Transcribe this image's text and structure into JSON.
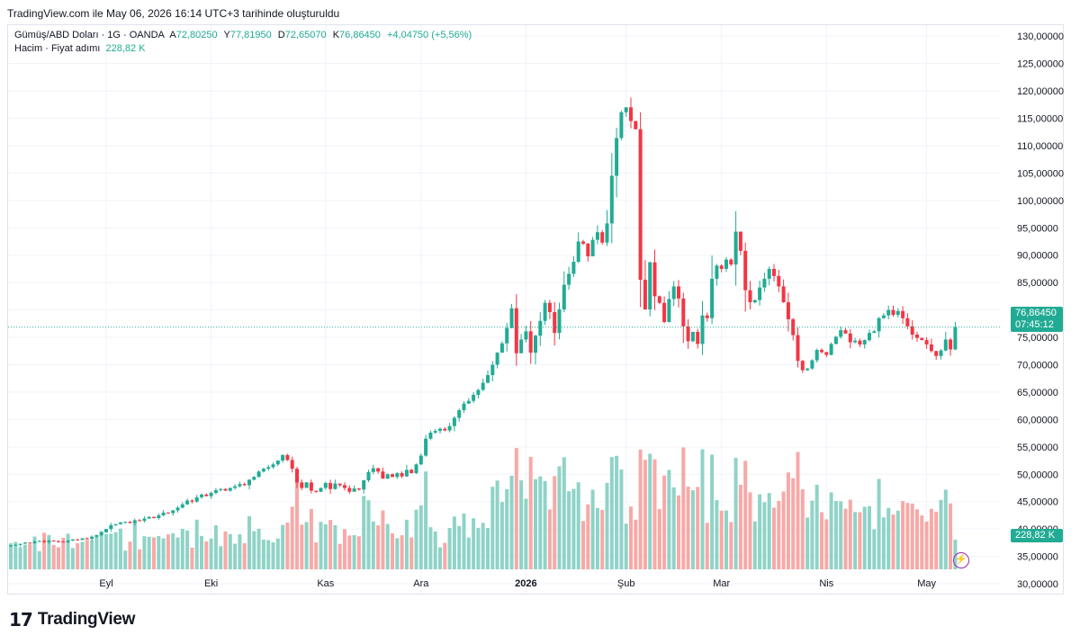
{
  "caption": "TradingView.com ile May 06, 2026 16:14 UTC+3 tarihinde oluşturuldu",
  "legend": {
    "symbol": "Gümüş/ABD Doları · 1G · OANDA",
    "open_label": "A",
    "open": "72,80250",
    "high_label": "Y",
    "high": "77,81950",
    "low_label": "D",
    "low": "72,65070",
    "close_label": "K",
    "close": "76,86450",
    "change": "+4,04750 (+5,56%)",
    "volume_label": "Hacim · Fiyat adımı",
    "volume": "228,82 K"
  },
  "price_tag": {
    "price": "76,86450",
    "countdown": "07:45:12"
  },
  "volume_tag": "228,82 K",
  "brand": {
    "logo": "17",
    "name": "TradingView"
  },
  "colors": {
    "up": "#22ab94",
    "down": "#f23645",
    "vol_up": "#8fd3c7",
    "vol_down": "#f7a9a7",
    "grid": "#f0f3fa"
  },
  "icons": {
    "bolt": "lightning-icon",
    "logo": "tradingview-logo-icon"
  },
  "chart_data": {
    "type": "candlestick",
    "y_ticks": [
      "130,00000",
      "125,00000",
      "120,00000",
      "115,00000",
      "110,00000",
      "105,00000",
      "100,00000",
      "95,00000",
      "90,00000",
      "85,00000",
      "80,00000",
      "75,00000",
      "70,00000",
      "65,00000",
      "60,00000",
      "55,00000",
      "50,00000",
      "45,00000",
      "40,00000",
      "35,00000",
      "30,00000"
    ],
    "y_range": [
      28.2,
      132
    ],
    "x_ticks": [
      {
        "label": "Eyl",
        "index": 20,
        "bold": false
      },
      {
        "label": "Eki",
        "index": 42,
        "bold": false
      },
      {
        "label": "Kas",
        "index": 66,
        "bold": false
      },
      {
        "label": "Ara",
        "index": 86,
        "bold": false
      },
      {
        "label": "2026",
        "index": 108,
        "bold": true
      },
      {
        "label": "Şub",
        "index": 129,
        "bold": false
      },
      {
        "label": "Mar",
        "index": 149,
        "bold": false
      },
      {
        "label": "Nis",
        "index": 171,
        "bold": false
      },
      {
        "label": "May",
        "index": 192,
        "bold": false
      }
    ],
    "closes": [
      37.0,
      37.1,
      37.3,
      37.5,
      37.4,
      37.7,
      37.8,
      37.6,
      37.9,
      37.8,
      37.7,
      37.6,
      37.9,
      38.1,
      38.0,
      38.3,
      38.2,
      38.6,
      38.9,
      39.4,
      40.0,
      40.7,
      40.9,
      41.2,
      41.3,
      41.1,
      41.6,
      41.5,
      41.9,
      42.2,
      42.0,
      42.5,
      43.0,
      42.9,
      43.4,
      43.9,
      44.5,
      45.2,
      45.0,
      45.8,
      46.3,
      46.0,
      46.6,
      47.1,
      47.3,
      47.0,
      47.5,
      47.8,
      48.2,
      48.0,
      49.0,
      49.5,
      50.5,
      51.0,
      51.3,
      51.8,
      52.5,
      53.5,
      52.6,
      51.0,
      48.5,
      47.5,
      48.5,
      47.0,
      46.8,
      47.5,
      48.4,
      47.3,
      48.3,
      48.0,
      47.5,
      46.8,
      47.4,
      47.2,
      48.9,
      50.4,
      51.1,
      50.5,
      49.2,
      50.0,
      49.5,
      50.2,
      49.6,
      50.8,
      50.2,
      51.8,
      53.4,
      56.5,
      57.6,
      57.9,
      58.3,
      58.0,
      58.8,
      60.3,
      61.7,
      62.9,
      63.4,
      64.5,
      65.4,
      66.7,
      68.1,
      70.0,
      72.2,
      73.9,
      76.7,
      80.3,
      72.1,
      74.6,
      76.1,
      72.2,
      75.3,
      78.0,
      81.3,
      79.6,
      75.8,
      80.1,
      84.6,
      86.6,
      88.8,
      92.5,
      92.1,
      89.8,
      92.8,
      94.2,
      92.3,
      95.8,
      104.5,
      111.4,
      116.1,
      117.0,
      114.5,
      113.0,
      85.5,
      80.1,
      88.7,
      82.5,
      81.3,
      77.8,
      82.0,
      84.3,
      82.1,
      77.0,
      74.3,
      76.0,
      73.8,
      79.0,
      78.5,
      85.7,
      88.1,
      87.5,
      89.2,
      88.3,
      94.3,
      90.8,
      83.6,
      81.4,
      81.8,
      84.1,
      85.7,
      87.5,
      86.2,
      84.3,
      81.4,
      78.3,
      75.4,
      70.7,
      69.0,
      69.3,
      70.8,
      72.7,
      72.3,
      71.8,
      73.8,
      75.1,
      76.3,
      75.7,
      74.1,
      74.4,
      73.7,
      74.5,
      75.8,
      76.1,
      78.5,
      79.0,
      80.0,
      79.1,
      79.8,
      78.5,
      77.0,
      75.5,
      74.9,
      74.5,
      73.7,
      72.5,
      71.6,
      72.6,
      74.6,
      72.8,
      76.9
    ],
    "last_bar": {
      "open": 72.8025,
      "high": 77.8195,
      "low": 72.6507,
      "close": 76.8645,
      "volume": "228,82 K"
    },
    "volume_scale_max": 100
  }
}
